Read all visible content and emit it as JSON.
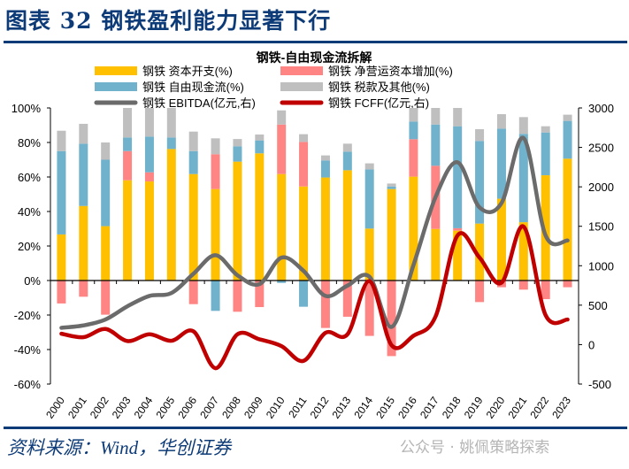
{
  "figure_title": "图表 32  钢铁盈利能力显著下行",
  "source": "资料来源：Wind，华创证券",
  "watermark": "公众号 · 姚佩策略探索",
  "chart_data": {
    "type": "bar",
    "stacked": true,
    "title": "钢铁-自由现金流拆解",
    "categories": [
      "2000",
      "2001",
      "2002",
      "2003",
      "2004",
      "2005",
      "2006",
      "2007",
      "2008",
      "2009",
      "2010",
      "2011",
      "2012",
      "2013",
      "2014",
      "2015",
      "2016",
      "2017",
      "2018",
      "2019",
      "2020",
      "2021",
      "2022",
      "2023"
    ],
    "left_axis": {
      "ylim": [
        -60,
        100
      ],
      "ticks": [
        "100%",
        "80%",
        "60%",
        "40%",
        "20%",
        "0%",
        "-20%",
        "-40%",
        "-60%"
      ],
      "tick_values": [
        100,
        80,
        60,
        40,
        20,
        0,
        -20,
        -40,
        -60
      ]
    },
    "right_axis": {
      "ylim": [
        -500,
        3000
      ],
      "ticks": [
        "3000",
        "2500",
        "2000",
        "1500",
        "1000",
        "500",
        "0",
        "-500"
      ],
      "tick_values": [
        3000,
        2500,
        2000,
        1500,
        1000,
        500,
        0,
        -500
      ]
    },
    "legend_placement": "top",
    "grid": false,
    "series": [
      {
        "name": "钢铁 资本开支(%)",
        "kind": "bar",
        "axis": "left",
        "color": "#FFC000",
        "values": [
          26.7,
          43.2,
          31.5,
          58.1,
          57.4,
          76.2,
          61.7,
          53.0,
          68.9,
          73.7,
          61.7,
          54.5,
          59.7,
          63.9,
          30.1,
          53.0,
          60.2,
          29.9,
          28.9,
          33.0,
          47.4,
          33.8,
          61.0,
          70.6
        ]
      },
      {
        "name": "钢铁 净营运资本增加(%)",
        "kind": "bar",
        "axis": "left",
        "color": "#FF8585",
        "values": [
          -13.3,
          -9.4,
          -19.8,
          16.9,
          5.3,
          0,
          -13.7,
          20.2,
          -18.1,
          -15.4,
          28.7,
          25.8,
          -27.5,
          -21.0,
          -32.1,
          -43.8,
          21.7,
          36.6,
          1.4,
          -12.5,
          -3.9,
          -5.3,
          -10.8,
          -3.9
        ]
      },
      {
        "name": "钢铁 自由现金流(%)",
        "kind": "bar",
        "axis": "left",
        "color": "#70B1CC",
        "values": [
          48.3,
          36.1,
          38.5,
          7.9,
          20.7,
          6.7,
          13.3,
          -17.6,
          8.9,
          7.5,
          -1.4,
          -15.2,
          9.9,
          10.8,
          34.3,
          1.5,
          10.2,
          23.9,
          59.1,
          47.9,
          40.6,
          51.2,
          24.8,
          21.9
        ]
      },
      {
        "name": "钢铁 税款及其他(%)",
        "kind": "bar",
        "axis": "left",
        "color": "#BFBFBF",
        "values": [
          11.8,
          11.5,
          10.0,
          17.1,
          16.6,
          17.1,
          11.3,
          9.2,
          4.2,
          3.4,
          8.2,
          4.5,
          2.9,
          4.6,
          3.5,
          1.7,
          7.9,
          9.6,
          10.6,
          6.8,
          8.4,
          9.7,
          3.6,
          3.6
        ]
      },
      {
        "name": "钢铁 EBITDA(亿元,右)",
        "kind": "line",
        "axis": "right",
        "color": "#6B6B6B",
        "values": [
          213,
          243,
          318,
          486,
          617,
          654,
          898,
          1133,
          879,
          767,
          1103,
          935,
          617,
          748,
          860,
          224,
          1010,
          1870,
          2311,
          1739,
          1795,
          2618,
          1384,
          1320
        ]
      },
      {
        "name": "钢铁 FCFF(亿元,右)",
        "kind": "line",
        "axis": "right",
        "color": "#C00000",
        "values": [
          138,
          94,
          198,
          45,
          131,
          49,
          168,
          -299,
          131,
          67,
          -19,
          -206,
          150,
          131,
          804,
          -7,
          112,
          355,
          1384,
          1103,
          785,
          1496,
          374,
          318
        ]
      }
    ]
  }
}
